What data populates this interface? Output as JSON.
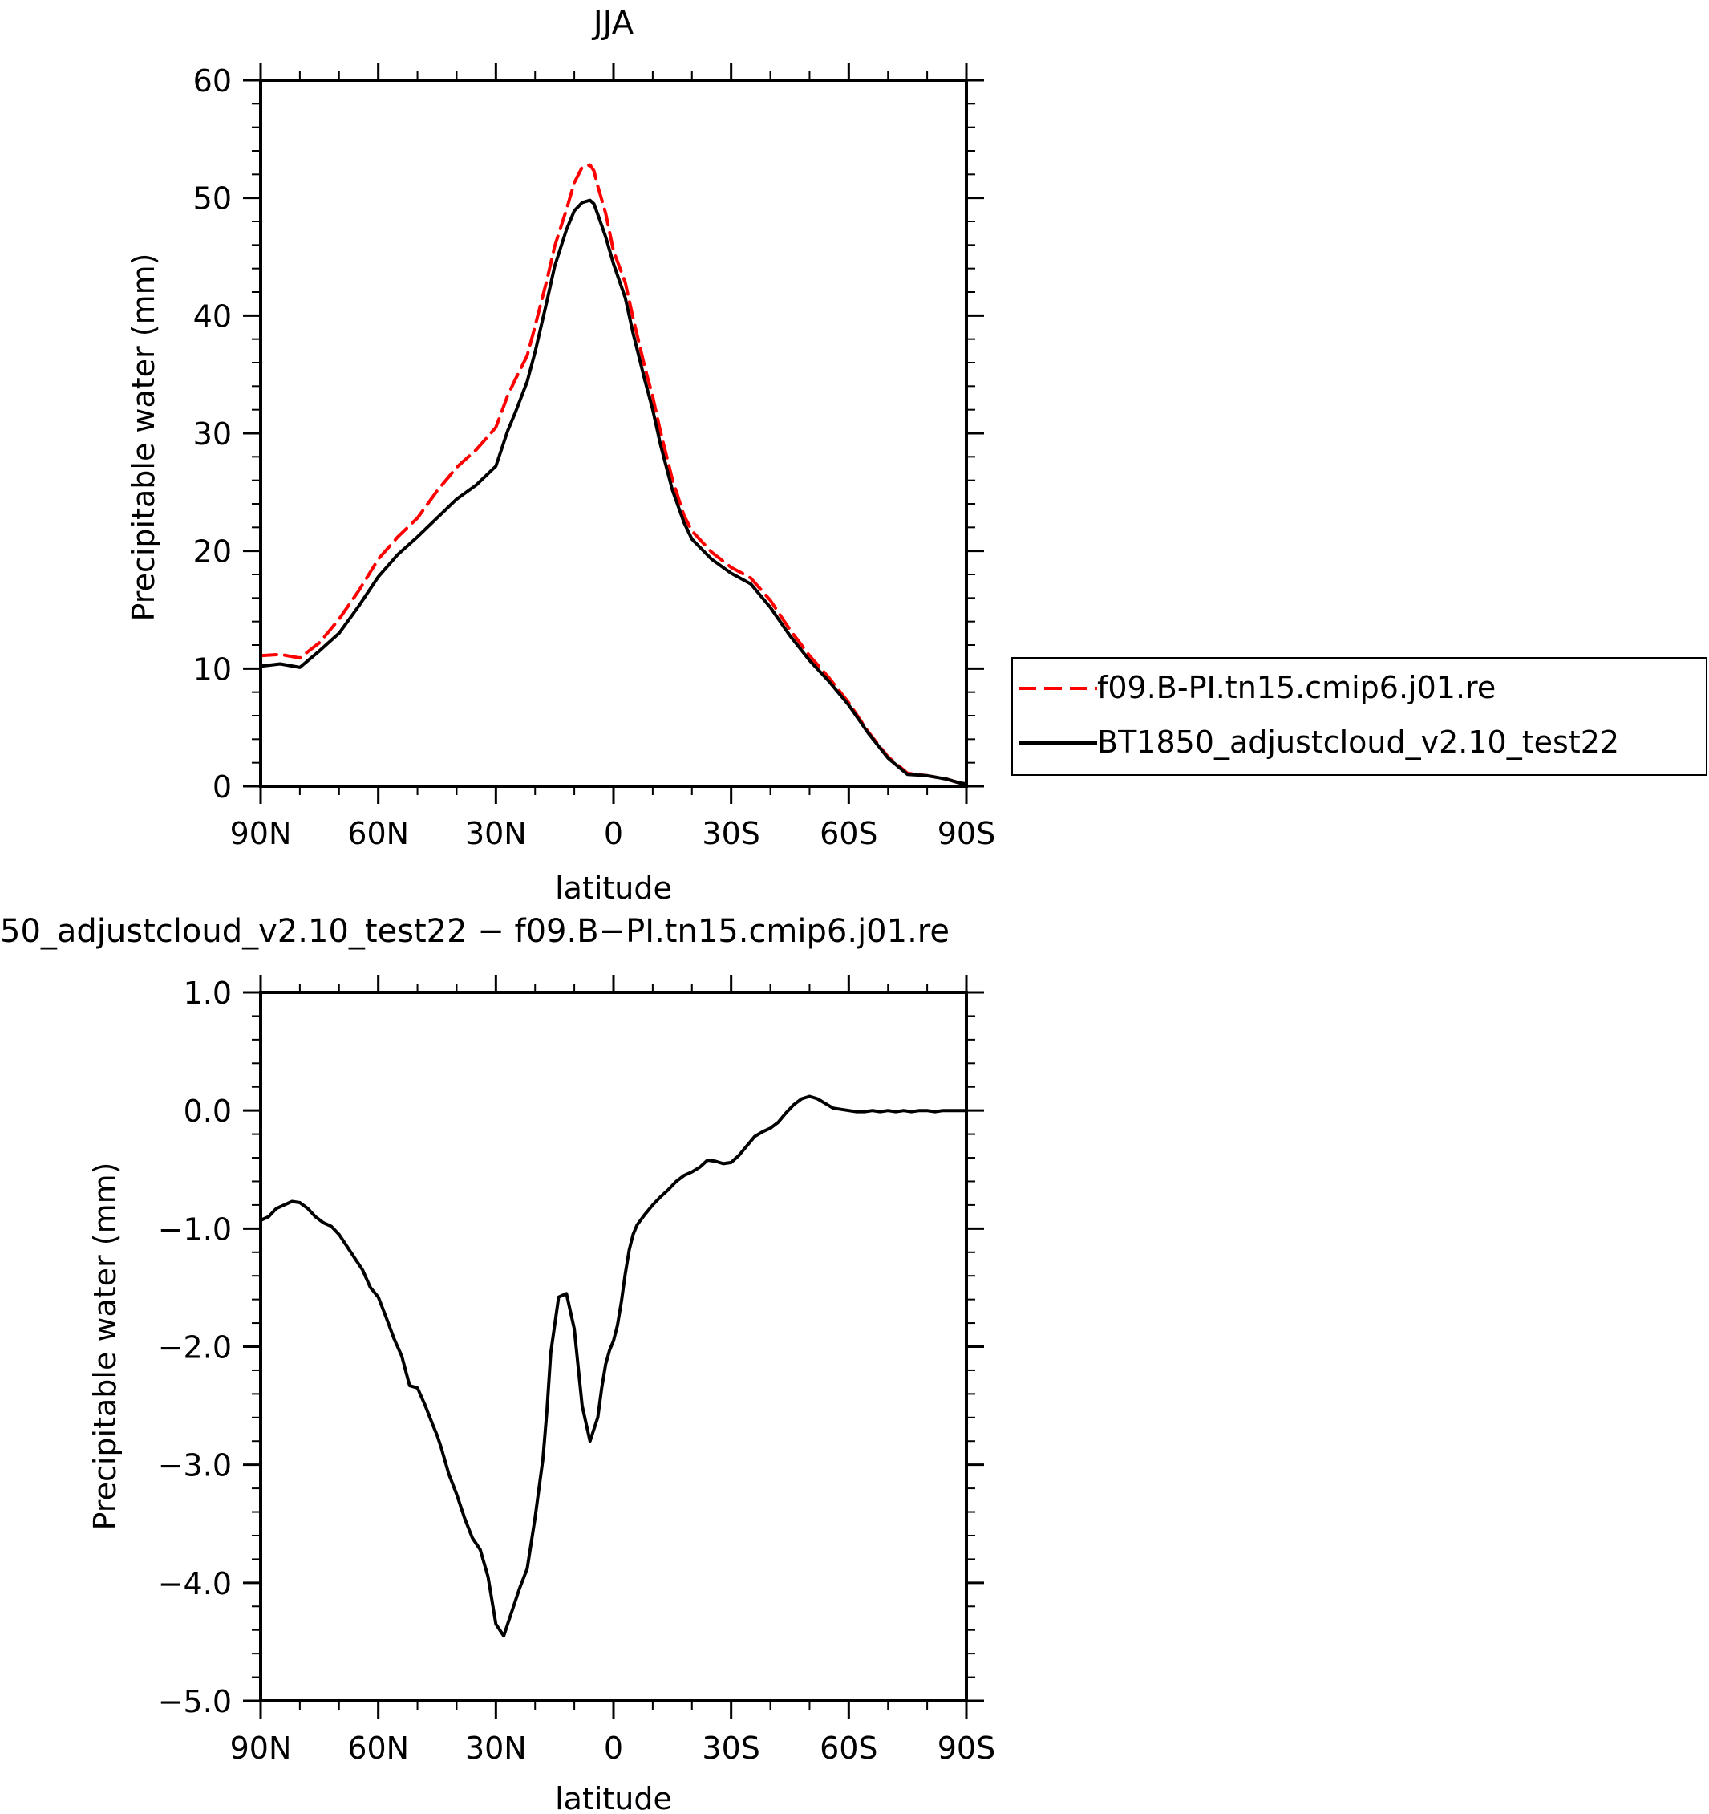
{
  "chart_data": [
    {
      "type": "line",
      "title": "JJA",
      "xlabel": "latitude",
      "ylabel": "Precipitable water (mm)",
      "xlim": [
        90,
        -90
      ],
      "ylim": [
        0,
        60
      ],
      "yticks": [
        0,
        10,
        20,
        30,
        40,
        50,
        60
      ],
      "ytick_labels": [
        "0",
        "10",
        "20",
        "30",
        "40",
        "50",
        "60"
      ],
      "xticks": [
        90,
        60,
        30,
        0,
        -30,
        -60,
        -90
      ],
      "xtick_labels": [
        "90N",
        "60N",
        "30N",
        "0",
        "30S",
        "60S",
        "90S"
      ],
      "grid": false,
      "legend": "right",
      "series": [
        {
          "name": "f09.B-PI.tn15.cmip6.j01.re",
          "color": "#ff0000",
          "dash": true,
          "x": [
            90,
            85,
            80,
            75,
            70,
            65,
            60,
            55,
            50,
            45,
            40,
            35,
            30,
            27,
            25,
            22,
            20,
            17,
            15,
            12,
            10,
            8,
            6,
            5,
            4,
            2,
            0,
            -3,
            -5,
            -8,
            -10,
            -12,
            -15,
            -18,
            -20,
            -25,
            -30,
            -35,
            -40,
            -45,
            -50,
            -55,
            -60,
            -65,
            -70,
            -75,
            -80,
            -85,
            -88,
            -90
          ],
          "values": [
            11.1,
            11.2,
            10.9,
            12.2,
            14.2,
            16.6,
            19.3,
            21.2,
            22.8,
            25.1,
            27.1,
            28.6,
            30.5,
            33.2,
            34.6,
            36.6,
            39.1,
            43.0,
            45.9,
            49.0,
            51.3,
            52.6,
            52.8,
            52.3,
            51.0,
            48.7,
            45.5,
            42.8,
            39.8,
            35.6,
            33.1,
            30.1,
            26.1,
            23.0,
            21.7,
            19.9,
            18.6,
            17.7,
            15.8,
            13.3,
            11.1,
            9.2,
            7.1,
            4.6,
            2.5,
            1.1,
            0.9,
            0.6,
            0.3,
            0.2
          ]
        },
        {
          "name": "BT1850_adjustcloud_v2.10_test22",
          "color": "#000000",
          "dash": false,
          "x": [
            90,
            85,
            80,
            75,
            70,
            65,
            60,
            55,
            50,
            45,
            40,
            35,
            30,
            27,
            25,
            22,
            20,
            17,
            15,
            12,
            10,
            8,
            6,
            5,
            4,
            2,
            0,
            -3,
            -5,
            -8,
            -10,
            -12,
            -15,
            -18,
            -20,
            -25,
            -30,
            -35,
            -40,
            -45,
            -50,
            -55,
            -60,
            -65,
            -70,
            -75,
            -80,
            -85,
            -88,
            -90
          ],
          "values": [
            10.2,
            10.4,
            10.1,
            11.5,
            13.0,
            15.3,
            17.8,
            19.7,
            21.2,
            22.8,
            24.4,
            25.6,
            27.2,
            30.2,
            31.8,
            34.4,
            36.9,
            41.2,
            44.2,
            47.3,
            48.9,
            49.6,
            49.8,
            49.5,
            48.6,
            46.7,
            44.4,
            41.5,
            38.5,
            34.5,
            32.0,
            29.0,
            25.2,
            22.4,
            21.0,
            19.3,
            18.1,
            17.2,
            15.2,
            12.8,
            10.7,
            8.9,
            6.9,
            4.5,
            2.4,
            1.0,
            0.9,
            0.6,
            0.3,
            0.2
          ]
        }
      ]
    },
    {
      "type": "line",
      "title": "50_adjustcloud_v2.10_test22 − f09.B−PI.tn15.cmip6.j01.re",
      "xlabel": "latitude",
      "ylabel": "Precipitable water (mm)",
      "xlim": [
        90,
        -90
      ],
      "ylim": [
        -5.0,
        1.0
      ],
      "yticks": [
        -5.0,
        -4.0,
        -3.0,
        -2.0,
        -1.0,
        0.0,
        1.0
      ],
      "ytick_labels": [
        "−5.0",
        "−4.0",
        "−3.0",
        "−2.0",
        "−1.0",
        "0.0",
        "1.0"
      ],
      "xticks": [
        90,
        60,
        30,
        0,
        -30,
        -60,
        -90
      ],
      "xtick_labels": [
        "90N",
        "60N",
        "30N",
        "0",
        "30S",
        "60S",
        "90S"
      ],
      "grid": false,
      "series": [
        {
          "color": "#000000",
          "x": [
            90,
            88,
            86,
            84,
            82,
            80,
            78,
            76,
            74,
            72,
            70,
            68,
            66,
            64,
            62,
            60,
            58,
            56,
            54,
            52,
            50,
            48,
            46,
            45,
            44,
            42,
            40,
            38,
            36,
            34,
            32,
            30,
            28,
            26,
            24,
            22,
            20,
            18,
            17,
            16,
            14,
            12,
            10,
            8,
            6,
            4,
            3,
            2,
            1,
            0,
            -1,
            -2,
            -3,
            -4,
            -5,
            -6,
            -8,
            -10,
            -12,
            -14,
            -16,
            -18,
            -20,
            -22,
            -24,
            -26,
            -28,
            -30,
            -32,
            -34,
            -36,
            -38,
            -40,
            -42,
            -44,
            -46,
            -48,
            -50,
            -52,
            -54,
            -56,
            -58,
            -60,
            -62,
            -64,
            -66,
            -68,
            -70,
            -72,
            -74,
            -76,
            -78,
            -80,
            -82,
            -84,
            -86,
            -88,
            -90
          ],
          "values": [
            -0.93,
            -0.9,
            -0.83,
            -0.8,
            -0.77,
            -0.78,
            -0.83,
            -0.9,
            -0.95,
            -0.98,
            -1.05,
            -1.15,
            -1.25,
            -1.35,
            -1.5,
            -1.58,
            -1.75,
            -1.93,
            -2.08,
            -2.33,
            -2.35,
            -2.5,
            -2.67,
            -2.75,
            -2.85,
            -3.08,
            -3.25,
            -3.45,
            -3.62,
            -3.72,
            -3.95,
            -4.35,
            -4.45,
            -4.25,
            -4.05,
            -3.88,
            -3.45,
            -2.95,
            -2.55,
            -2.05,
            -1.58,
            -1.55,
            -1.85,
            -2.5,
            -2.8,
            -2.6,
            -2.35,
            -2.15,
            -2.03,
            -1.95,
            -1.82,
            -1.62,
            -1.38,
            -1.18,
            -1.05,
            -0.97,
            -0.88,
            -0.8,
            -0.73,
            -0.67,
            -0.6,
            -0.55,
            -0.52,
            -0.48,
            -0.42,
            -0.43,
            -0.45,
            -0.44,
            -0.38,
            -0.3,
            -0.22,
            -0.18,
            -0.15,
            -0.1,
            -0.02,
            0.05,
            0.1,
            0.12,
            0.1,
            0.06,
            0.02,
            0.01,
            0.0,
            -0.01,
            -0.01,
            0.0,
            -0.01,
            0.0,
            -0.01,
            0.0,
            -0.01,
            0.0,
            0.0,
            -0.01,
            0.0,
            0.0,
            0.0,
            0.0
          ]
        }
      ]
    }
  ]
}
